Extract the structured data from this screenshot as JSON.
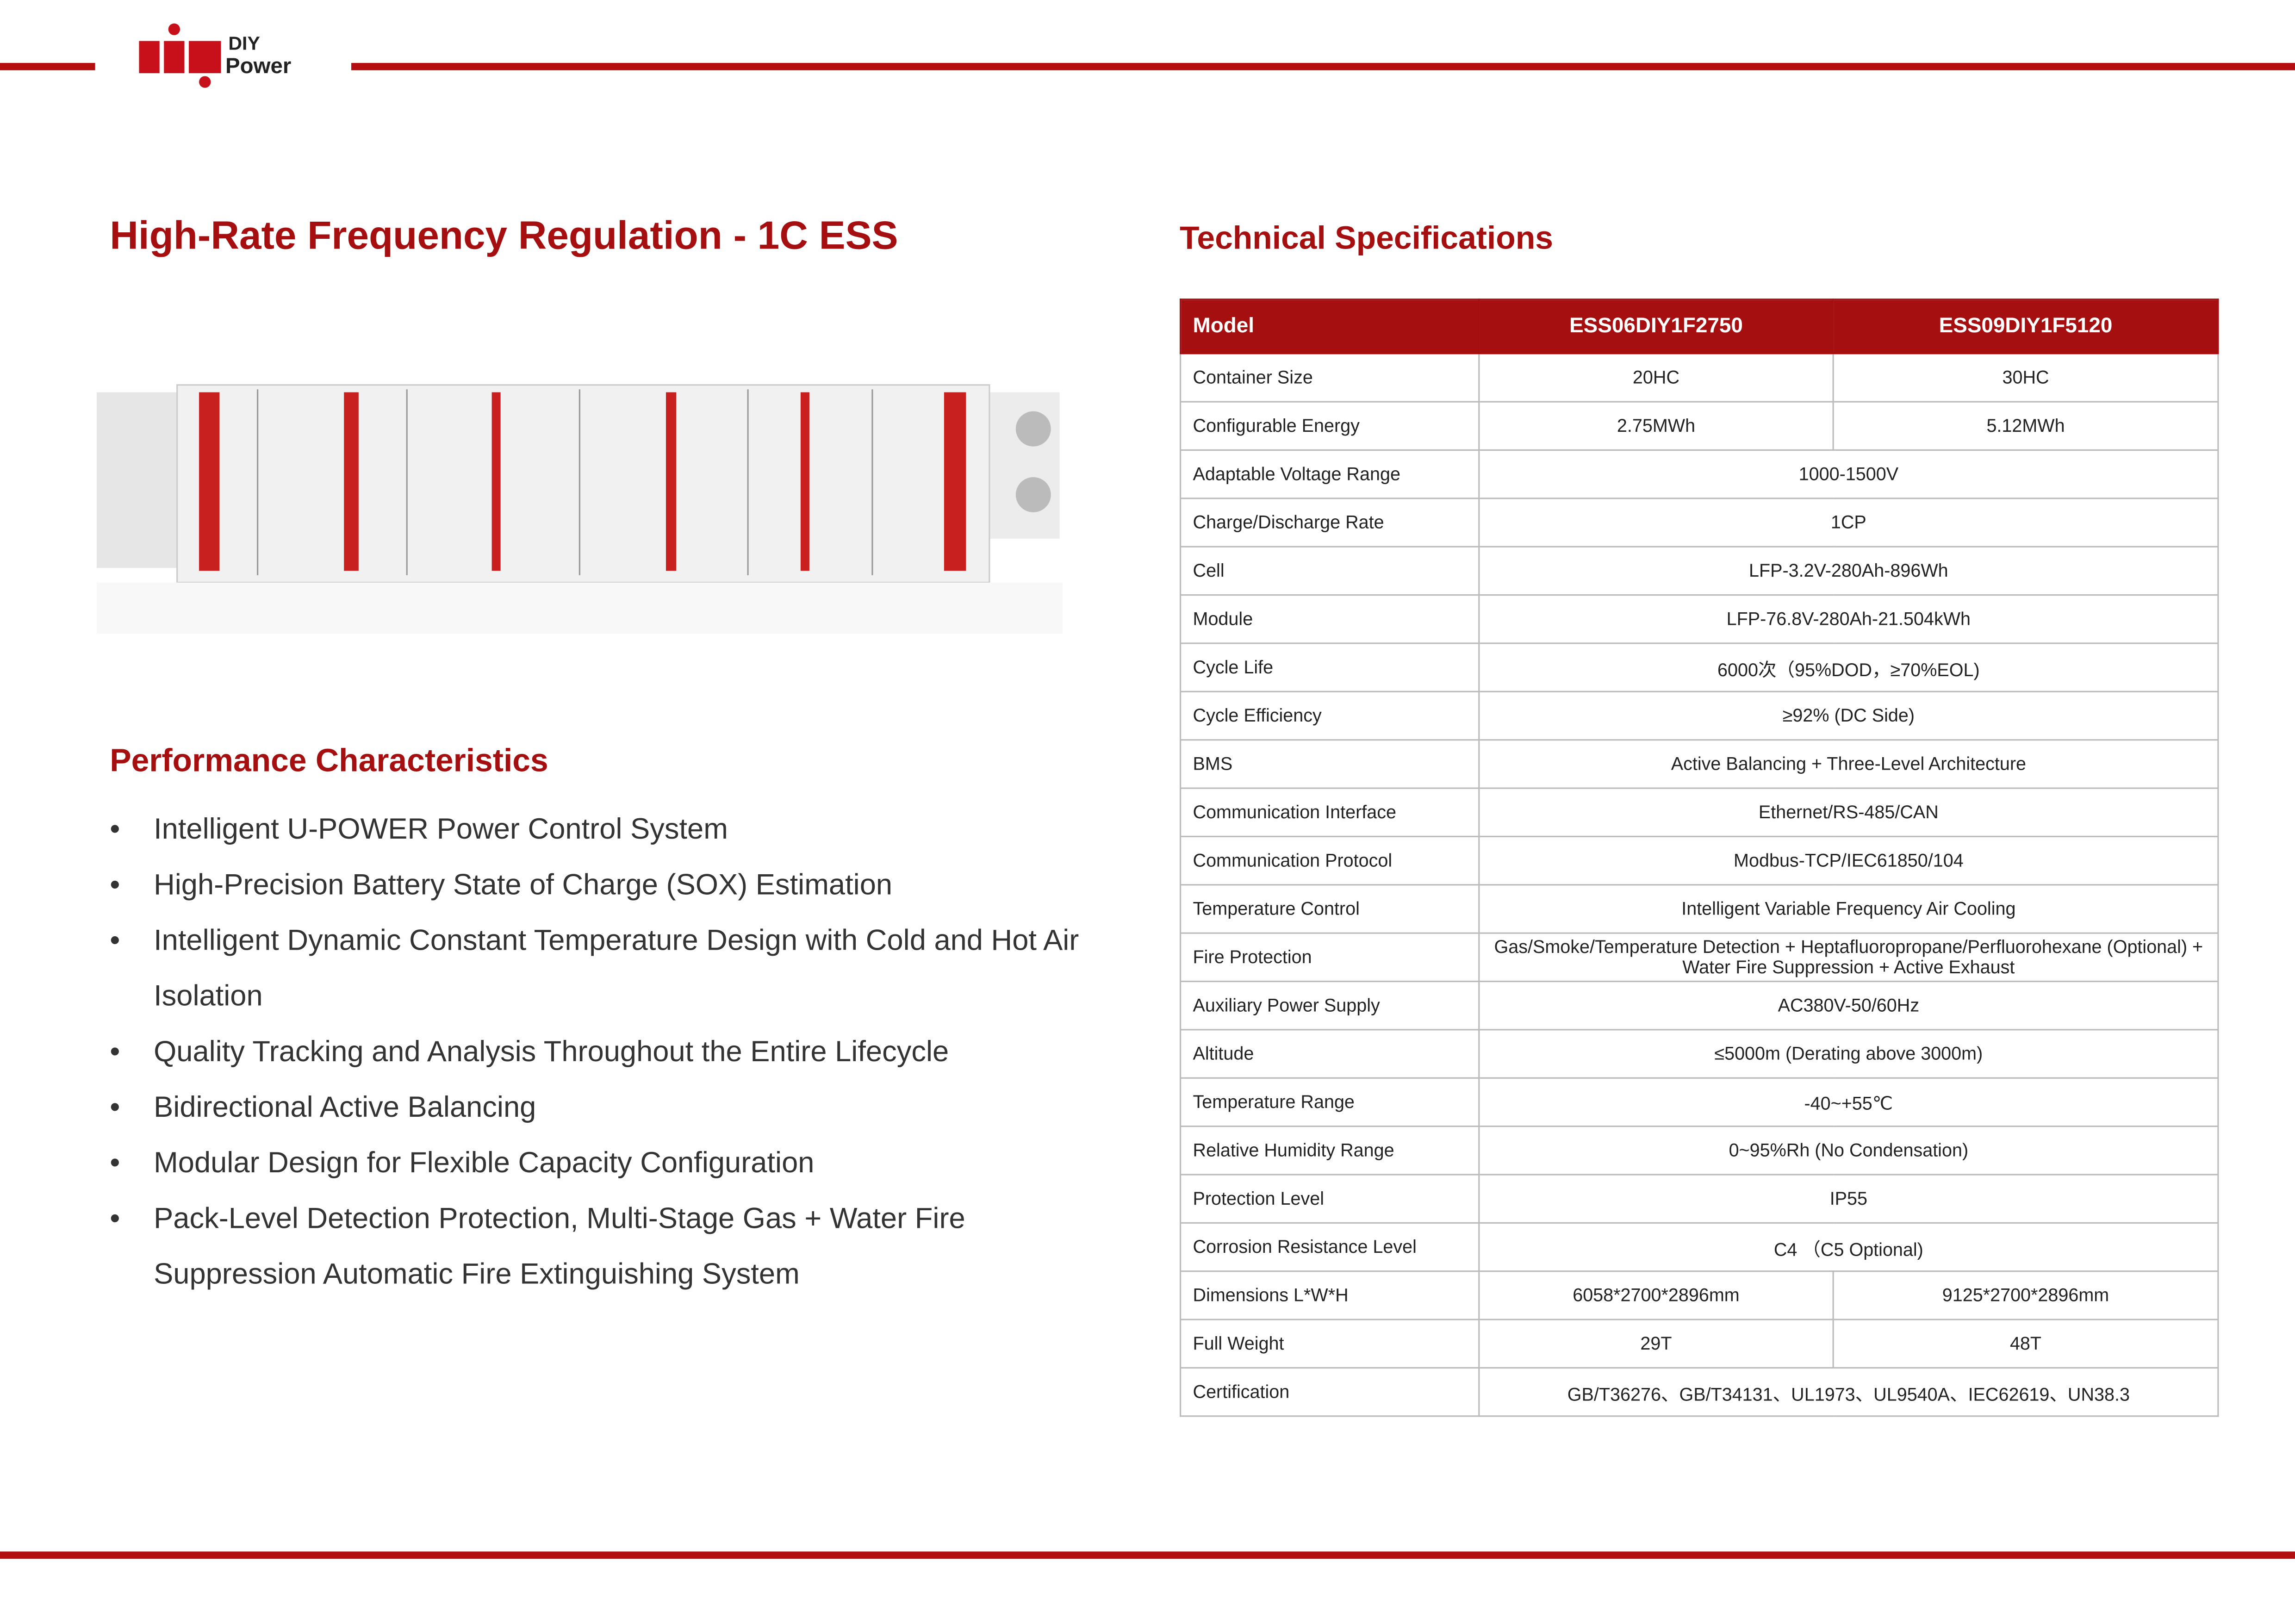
{
  "logo": {
    "text1": "DIY",
    "text2": "Power"
  },
  "title": "High-Rate Frequency Regulation - 1C ESS",
  "performance": {
    "title": "Performance Characteristics",
    "items": [
      "Intelligent U-POWER Power Control System",
      "High-Precision Battery State of Charge (SOX) Estimation",
      "Intelligent Dynamic Constant Temperature Design with Cold and Hot Air Isolation",
      "Quality Tracking and Analysis Throughout the Entire Lifecycle",
      "Bidirectional Active Balancing",
      "Modular Design for Flexible Capacity Configuration",
      "Pack-Level Detection Protection, Multi-Stage Gas + Water Fire Suppression Automatic Fire Extinguishing System"
    ]
  },
  "specs": {
    "title": "Technical Specifications",
    "header": [
      "Model",
      "ESS06DIY1F2750",
      "ESS09DIY1F5120"
    ],
    "rows": [
      [
        "Container Size",
        "20HC",
        "30HC"
      ],
      [
        "Configurable Energy",
        "2.75MWh",
        "5.12MWh"
      ],
      [
        "Adaptable Voltage Range",
        "1000-1500V"
      ],
      [
        "Charge/Discharge Rate",
        "1CP"
      ],
      [
        "Cell",
        "LFP-3.2V-280Ah-896Wh"
      ],
      [
        "Module",
        "LFP-76.8V-280Ah-21.504kWh"
      ],
      [
        "Cycle Life",
        "6000次（95%DOD，≥70%EOL)"
      ],
      [
        "Cycle Efficiency",
        "≥92% (DC Side)"
      ],
      [
        "BMS",
        "Active Balancing + Three-Level Architecture"
      ],
      [
        "Communication Interface",
        "Ethernet/RS-485/CAN"
      ],
      [
        "Communication Protocol",
        "Modbus-TCP/IEC61850/104"
      ],
      [
        "Temperature Control",
        "Intelligent Variable Frequency Air Cooling"
      ],
      [
        "Fire Protection",
        "Gas/Smoke/Temperature Detection + Heptafluoropropane/Perfluorohexane (Optional) + Water Fire Suppression + Active Exhaust"
      ],
      [
        "Auxiliary Power Supply",
        "AC380V-50/60Hz"
      ],
      [
        "Altitude",
        "≤5000m (Derating above 3000m)"
      ],
      [
        "Temperature Range",
        "-40~+55℃"
      ],
      [
        "Relative Humidity Range",
        "0~95%Rh (No Condensation)"
      ],
      [
        "Protection Level",
        "IP55"
      ],
      [
        "Corrosion Resistance Level",
        "C4 （C5 Optional)"
      ],
      [
        "Dimensions L*W*H",
        "6058*2700*2896mm",
        "9125*2700*2896mm"
      ],
      [
        "Full Weight",
        "29T",
        "48T"
      ],
      [
        "Certification",
        "GB/T36276、GB/T34131、UL1973、UL9540A、IEC62619、UN38.3"
      ]
    ]
  }
}
